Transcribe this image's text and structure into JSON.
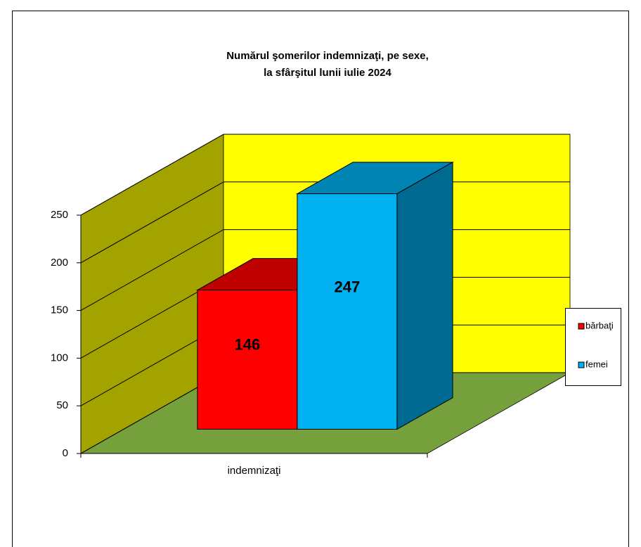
{
  "chart_data": {
    "type": "bar3d",
    "title": [
      "Numărul şomerilor  indemnizaţi,  pe sexe,",
      "la sfârşitul  lunii  iulie  2024"
    ],
    "categories": [
      "indemnizaţi"
    ],
    "series": [
      {
        "name": "bărbaţi",
        "color": "#ff0000",
        "values": [
          146
        ]
      },
      {
        "name": "femei",
        "color": "#00b0f0",
        "values": [
          247
        ]
      }
    ],
    "ylim": [
      0,
      250
    ],
    "yticks": [
      0,
      50,
      100,
      150,
      200,
      250
    ],
    "grid": true,
    "legend": "right"
  }
}
